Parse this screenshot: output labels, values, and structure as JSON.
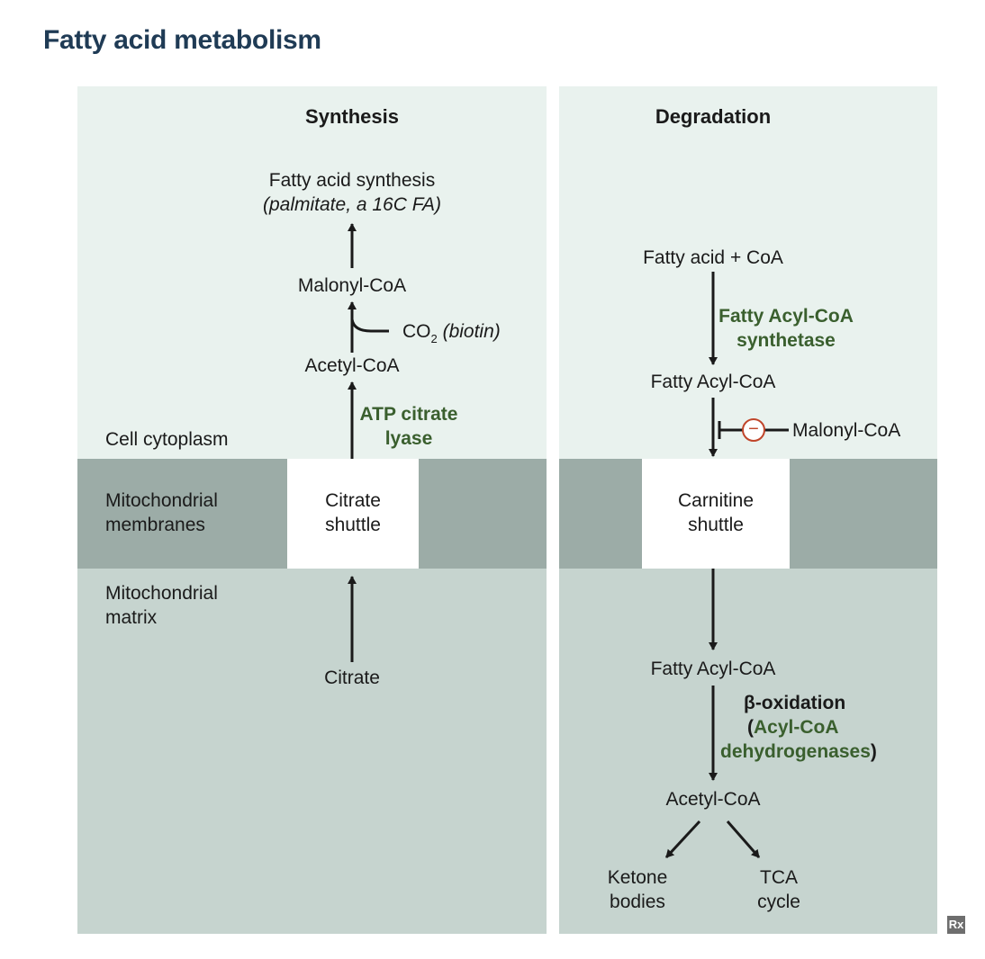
{
  "title": "Fatty acid metabolism",
  "regions": {
    "cytoplasm": "Cell cytoplasm",
    "membranes_line1": "Mitochondrial",
    "membranes_line2": "membranes",
    "matrix_line1": "Mitochondrial",
    "matrix_line2": "matrix"
  },
  "synthesis": {
    "header": "Synthesis",
    "product_line1": "Fatty acid synthesis",
    "product_line2": "(palmitate, a 16C FA)",
    "malonyl": "Malonyl-CoA",
    "co2": "CO",
    "co2_sub": "2",
    "biotin": "(biotin)",
    "acetyl": "Acetyl-CoA",
    "enzyme_line1": "ATP citrate",
    "enzyme_line2": "lyase",
    "shuttle_line1": "Citrate",
    "shuttle_line2": "shuttle",
    "citrate": "Citrate"
  },
  "degradation": {
    "header": "Degradation",
    "start": "Fatty acid + CoA",
    "enzyme1_line1": "Fatty Acyl-CoA",
    "enzyme1_line2": "synthetase",
    "fatty_acyl_1": "Fatty Acyl-CoA",
    "inhibitor_symbol": "−",
    "inhibitor": "Malonyl-CoA",
    "shuttle_line1": "Carnitine",
    "shuttle_line2": "shuttle",
    "fatty_acyl_2": "Fatty Acyl-CoA",
    "beta_ox": "β-oxidation",
    "paren_open": "(",
    "enzyme2_line1": "Acyl-CoA",
    "enzyme2_line2": "dehydrogenases",
    "paren_close": ")",
    "acetyl": "Acetyl-CoA",
    "ketone_line1": "Ketone",
    "ketone_line2": "bodies",
    "tca_line1": "TCA",
    "tca_line2": "cycle"
  },
  "badge": "Rx",
  "colors": {
    "title": "#1f3b55",
    "cytoplasm_bg": "#e9f2ee",
    "membrane_bg": "#9caca7",
    "matrix_bg": "#c6d4cf",
    "enzyme_text": "#3a5f2e",
    "inhibitor": "#c0452a"
  }
}
